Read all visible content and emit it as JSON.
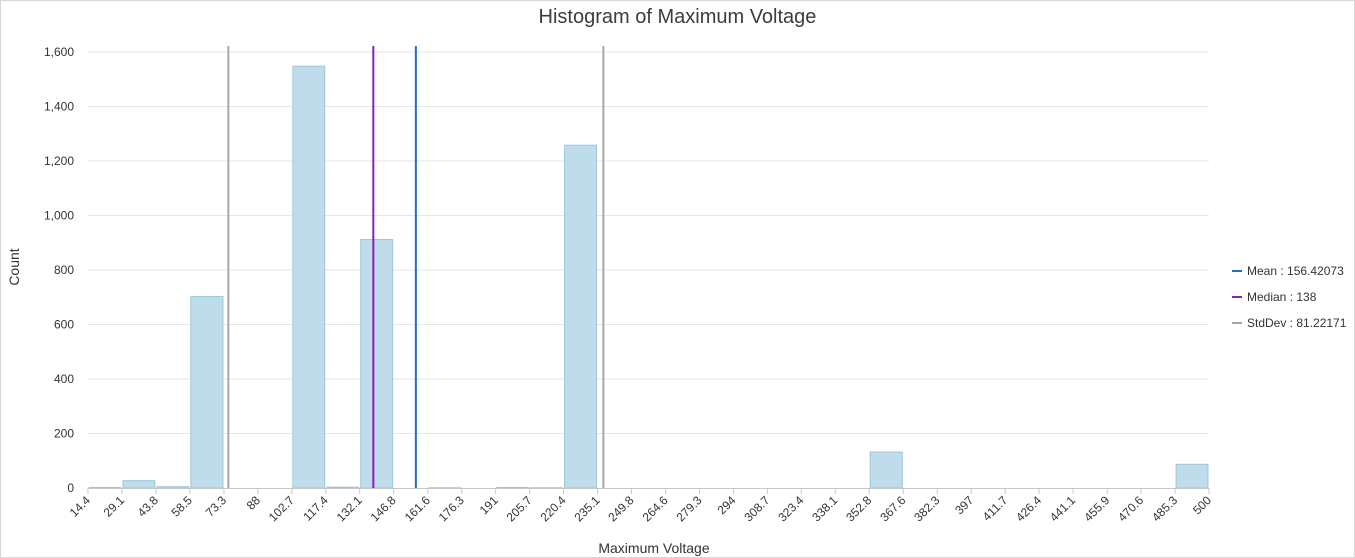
{
  "chart_data": {
    "type": "bar",
    "title": "Histogram of Maximum Voltage",
    "xlabel": "Maximum Voltage",
    "ylabel": "Count",
    "x_ticks": [
      "14.4",
      "29.1",
      "43.8",
      "58.5",
      "73.3",
      "88",
      "102.7",
      "117.4",
      "132.1",
      "146.8",
      "161.6",
      "176.3",
      "191",
      "205.7",
      "220.4",
      "235.1",
      "249.8",
      "264.6",
      "279.3",
      "294",
      "308.7",
      "323.4",
      "338.1",
      "352.8",
      "367.6",
      "382.3",
      "397",
      "411.7",
      "426.4",
      "441.1",
      "455.9",
      "470.6",
      "485.3",
      "500"
    ],
    "counts": [
      2,
      27,
      5,
      703,
      0,
      0,
      1548,
      3,
      912,
      0,
      1,
      0,
      2,
      1,
      1258,
      0,
      0,
      0,
      0,
      0,
      0,
      0,
      0,
      132,
      0,
      0,
      0,
      0,
      0,
      0,
      0,
      0,
      87
    ],
    "y_ticks": [
      "0",
      "200",
      "400",
      "600",
      "800",
      "1,000",
      "1,200",
      "1,400",
      "1,600"
    ],
    "ylim": [
      0,
      1600
    ],
    "xlim": [
      14.4,
      500
    ],
    "grid": "horizontal",
    "bar_color": "#bfdceb",
    "bar_edge_color": "#9cc8df",
    "reference_lines": [
      {
        "name": "Mean",
        "label": "Mean : 156.42073",
        "value": 156.42073,
        "color": "#1f6fc4"
      },
      {
        "name": "Median",
        "label": "Median : 138",
        "value": 138,
        "color": "#8a1fbf"
      },
      {
        "name": "StdDev",
        "label": "StdDev : 81.22171",
        "value": 81.22171,
        "color": "#a6a6a6",
        "lines_at": [
          75.19902,
          237.64244
        ]
      }
    ],
    "legend_position": "right"
  }
}
